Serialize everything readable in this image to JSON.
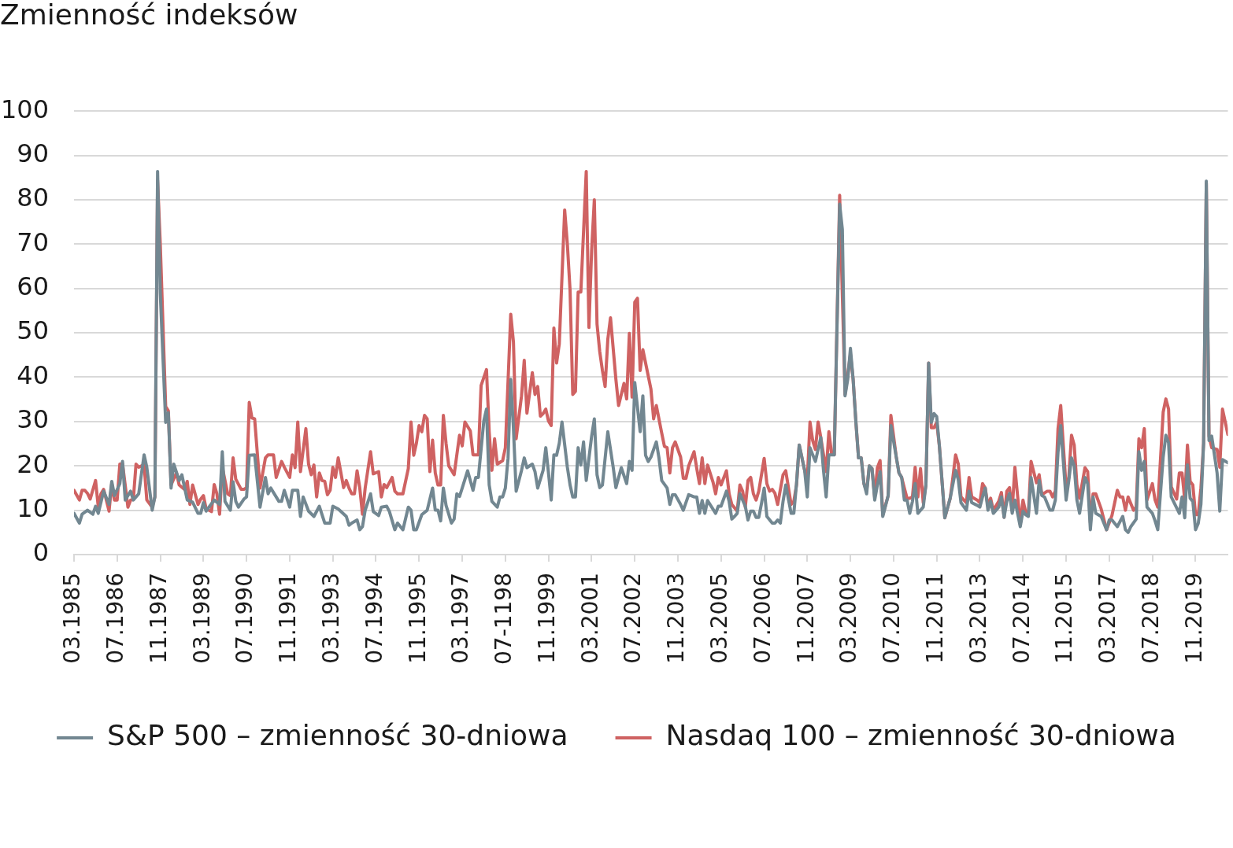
{
  "chart_data": {
    "type": "line",
    "title": "Zmienność indeksów",
    "xlim": [
      "1985-03",
      "2020-11"
    ],
    "xticks": [
      {
        "value": "1985-03",
        "label": "03.1985"
      },
      {
        "value": "1986-07",
        "label": "07.1986"
      },
      {
        "value": "1987-11",
        "label": "11.1987"
      },
      {
        "value": "1989-03",
        "label": "03.1989"
      },
      {
        "value": "1990-07",
        "label": "07.1990"
      },
      {
        "value": "1991-11",
        "label": "11.1991"
      },
      {
        "value": "1993-03",
        "label": "03.1993"
      },
      {
        "value": "1994-07",
        "label": "07.1994"
      },
      {
        "value": "1995-11",
        "label": "11.1995"
      },
      {
        "value": "1997-03",
        "label": "03.1997"
      },
      {
        "value": "1998-07",
        "label": "07-1198"
      },
      {
        "value": "1999-11",
        "label": "11.1999"
      },
      {
        "value": "2001-03",
        "label": "03.2001"
      },
      {
        "value": "2002-07",
        "label": "07.2002"
      },
      {
        "value": "2003-11",
        "label": "11.2003"
      },
      {
        "value": "2005-03",
        "label": "03.2005"
      },
      {
        "value": "2006-07",
        "label": "07.2006"
      },
      {
        "value": "2007-11",
        "label": "11.2007"
      },
      {
        "value": "2009-03",
        "label": "03.2009"
      },
      {
        "value": "2010-07",
        "label": "07.2010"
      },
      {
        "value": "2011-11",
        "label": "11.2011"
      },
      {
        "value": "2013-03",
        "label": "03.2013"
      },
      {
        "value": "2014-07",
        "label": "07.2014"
      },
      {
        "value": "2015-11",
        "label": "11.2015"
      },
      {
        "value": "2017-03",
        "label": "03.2017"
      },
      {
        "value": "2018-07",
        "label": "07.2018"
      },
      {
        "value": "2019-11",
        "label": "11.2019"
      }
    ],
    "ylim": [
      0,
      100
    ],
    "yticks": [
      0,
      10,
      20,
      30,
      40,
      50,
      60,
      70,
      80,
      90,
      100
    ],
    "grid": "y",
    "legend": "bottom",
    "series": [
      {
        "name": "S&P 500 – zmienność 30-dniowa",
        "color": "#728791",
        "x": [
          "1985-03",
          "1985-05",
          "1985-06",
          "1985-08",
          "1985-10",
          "1985-11",
          "1985-12",
          "1986-02",
          "1986-04",
          "1986-05",
          "1986-06",
          "1986-08",
          "1986-09",
          "1986-10",
          "1986-12",
          "1987-01",
          "1987-03",
          "1987-05",
          "1987-06",
          "1987-08",
          "1987-09",
          "1987-10",
          "1987-11",
          "1988-01",
          "1988-02",
          "1988-03",
          "1988-04",
          "1988-06",
          "1988-07",
          "1988-09",
          "1988-11",
          "1989-01",
          "1989-02",
          "1989-03",
          "1989-04",
          "1989-07",
          "1989-09",
          "1989-10",
          "1989-11",
          "1990-01",
          "1990-02",
          "1990-03",
          "1990-04",
          "1990-06",
          "1990-07",
          "1990-08",
          "1990-10",
          "1990-12",
          "1991-02",
          "1991-03",
          "1991-04",
          "1991-07",
          "1991-08",
          "1991-09",
          "1991-11",
          "1991-12",
          "1992-02",
          "1992-03",
          "1992-04",
          "1992-06",
          "1992-08",
          "1992-10",
          "1992-12",
          "1993-02",
          "1993-03",
          "1993-05",
          "1993-08",
          "1993-09",
          "1993-10",
          "1993-12",
          "1994-01",
          "1994-02",
          "1994-03",
          "1994-05",
          "1994-06",
          "1994-08",
          "1994-09",
          "1994-11",
          "1994-12",
          "1995-02",
          "1995-03",
          "1995-05",
          "1995-07",
          "1995-08",
          "1995-09",
          "1995-10",
          "1995-12",
          "1996-02",
          "1996-04",
          "1996-05",
          "1996-06",
          "1996-07",
          "1996-08",
          "1996-09",
          "1996-11",
          "1996-12",
          "1997-01",
          "1997-02",
          "1997-03",
          "1997-05",
          "1997-07",
          "1997-08",
          "1997-09",
          "1997-11",
          "1997-12",
          "1998-01",
          "1998-02",
          "1998-04",
          "1998-05",
          "1998-06",
          "1998-07",
          "1998-08",
          "1998-09",
          "1998-10",
          "1998-11",
          "1999-01",
          "1999-02",
          "1999-03",
          "1999-05",
          "1999-06",
          "1999-07",
          "1999-09",
          "1999-10",
          "1999-11",
          "1999-12",
          "2000-01",
          "2000-02",
          "2000-03",
          "2000-04",
          "2000-06",
          "2000-07",
          "2000-08",
          "2000-09",
          "2000-10",
          "2000-11",
          "2000-12",
          "2001-01",
          "2001-03",
          "2001-04",
          "2001-05",
          "2001-06",
          "2001-07",
          "2001-09",
          "2001-11",
          "2001-12",
          "2002-02",
          "2002-04",
          "2002-05",
          "2002-06",
          "2002-07",
          "2002-09",
          "2002-10",
          "2002-11",
          "2002-12",
          "2003-01",
          "2003-03",
          "2003-04",
          "2003-05",
          "2003-07",
          "2003-08",
          "2003-09",
          "2003-10",
          "2003-12",
          "2004-01",
          "2004-03",
          "2004-05",
          "2004-06",
          "2004-07",
          "2004-08",
          "2004-09",
          "2004-10",
          "2005-01",
          "2005-02",
          "2005-03",
          "2005-05",
          "2005-06",
          "2005-07",
          "2005-08",
          "2005-09",
          "2005-10",
          "2005-12",
          "2006-01",
          "2006-02",
          "2006-03",
          "2006-04",
          "2006-05",
          "2006-06",
          "2006-07",
          "2006-08",
          "2006-10",
          "2006-11",
          "2006-12",
          "2007-01",
          "2007-02",
          "2007-03",
          "2007-05",
          "2007-06",
          "2007-07",
          "2007-08",
          "2007-10",
          "2007-11",
          "2007-12",
          "2008-01",
          "2008-02",
          "2008-04",
          "2008-05",
          "2008-06",
          "2008-07",
          "2008-09",
          "2008-11",
          "2008-12",
          "2009-01",
          "2009-02",
          "2009-03",
          "2009-04",
          "2009-05",
          "2009-06",
          "2009-07",
          "2009-08",
          "2009-09",
          "2009-10",
          "2009-11",
          "2009-12",
          "2010-01",
          "2010-02",
          "2010-03",
          "2010-05",
          "2010-06",
          "2010-08",
          "2010-09",
          "2010-10",
          "2010-11",
          "2010-12",
          "2011-01",
          "2011-02",
          "2011-03",
          "2011-04",
          "2011-06",
          "2011-07",
          "2011-08",
          "2011-09",
          "2011-10",
          "2011-11",
          "2011-12",
          "2012-02",
          "2012-04",
          "2012-06",
          "2012-07",
          "2012-08",
          "2012-10",
          "2012-11",
          "2012-12",
          "2013-02",
          "2013-03",
          "2013-04",
          "2013-05",
          "2013-06",
          "2013-07",
          "2013-08",
          "2013-10",
          "2013-11",
          "2013-12",
          "2014-01",
          "2014-02",
          "2014-03",
          "2014-04",
          "2014-06",
          "2014-07",
          "2014-08",
          "2014-09",
          "2014-10",
          "2014-12",
          "2015-01",
          "2015-02",
          "2015-03",
          "2015-05",
          "2015-06",
          "2015-07",
          "2015-08",
          "2015-09",
          "2015-11",
          "2015-12",
          "2016-01",
          "2016-02",
          "2016-03",
          "2016-04",
          "2016-06",
          "2016-07",
          "2016-08",
          "2016-09",
          "2016-10",
          "2016-12",
          "2017-02",
          "2017-03",
          "2017-04",
          "2017-06",
          "2017-08",
          "2017-09",
          "2017-10",
          "2017-11",
          "2018-01",
          "2018-02",
          "2018-03",
          "2018-04",
          "2018-05",
          "2018-07",
          "2018-08",
          "2018-09",
          "2018-11",
          "2018-12",
          "2019-01",
          "2019-02",
          "2019-05",
          "2019-06",
          "2019-07",
          "2019-08",
          "2019-09",
          "2019-10",
          "2019-11",
          "2019-12",
          "2020-01",
          "2020-02",
          "2020-03",
          "2020-04",
          "2020-05",
          "2020-07",
          "2020-08",
          "2020-09",
          "2020-11"
        ],
        "values": [
          9.3,
          7.1,
          9.1,
          10.0,
          9.1,
          10.9,
          9.3,
          14.3,
          11.3,
          16.5,
          13.3,
          16.0,
          21.0,
          12.3,
          14.3,
          12.3,
          13.7,
          22.5,
          19.7,
          10.0,
          13.0,
          86.4,
          59.0,
          29.8,
          32.0,
          15.0,
          20.4,
          16.7,
          18.0,
          12.3,
          11.8,
          9.3,
          9.3,
          11.7,
          9.8,
          12.3,
          11.3,
          23.2,
          12.0,
          10.0,
          16.4,
          12.0,
          10.7,
          12.5,
          13.0,
          22.4,
          22.5,
          10.7,
          17.4,
          13.7,
          15.0,
          12.0,
          12.0,
          14.5,
          10.7,
          14.5,
          14.5,
          8.6,
          13.0,
          9.8,
          8.6,
          10.9,
          7.1,
          7.1,
          10.9,
          10.3,
          8.6,
          6.6,
          7.1,
          7.8,
          5.6,
          6.3,
          10.0,
          13.7,
          9.7,
          8.8,
          10.7,
          10.9,
          9.7,
          5.6,
          7.1,
          5.6,
          10.7,
          10.0,
          5.6,
          5.6,
          9.0,
          10.0,
          15.0,
          10.0,
          10.0,
          7.6,
          15.0,
          11.1,
          7.1,
          8.0,
          13.7,
          13.1,
          15.0,
          18.9,
          14.5,
          17.4,
          17.4,
          30.1,
          32.8,
          15.7,
          12.0,
          10.7,
          13.0,
          13.0,
          15.0,
          21.7,
          39.5,
          28.4,
          14.3,
          19.0,
          21.8,
          19.6,
          20.4,
          18.7,
          15.0,
          19.0,
          24.1,
          18.4,
          12.3,
          22.5,
          22.4,
          25.1,
          29.9,
          19.7,
          15.7,
          13.0,
          13.0,
          24.1,
          20.2,
          25.4,
          16.7,
          26.7,
          30.6,
          18.0,
          15.1,
          15.7,
          27.7,
          19.7,
          15.1,
          19.6,
          16.0,
          21.0,
          19.0,
          38.8,
          27.7,
          35.8,
          22.4,
          21.0,
          22.0,
          25.4,
          21.7,
          16.7,
          15.0,
          11.3,
          13.5,
          13.5,
          11.3,
          10.0,
          13.5,
          13.0,
          13.0,
          9.3,
          12.2,
          9.3,
          12.2,
          9.3,
          10.9,
          10.9,
          14.3,
          12.0,
          8.0,
          8.6,
          9.3,
          13.7,
          10.9,
          7.8,
          9.8,
          9.8,
          8.4,
          8.4,
          11.5,
          15.0,
          8.6,
          7.1,
          7.1,
          7.8,
          7.1,
          12.0,
          15.7,
          9.3,
          9.3,
          16.0,
          24.7,
          19.0,
          13.0,
          24.1,
          22.5,
          21.0,
          26.4,
          19.0,
          13.0,
          22.5,
          22.5,
          79.0,
          73.3,
          35.8,
          39.5,
          46.5,
          39.5,
          30.1,
          21.8,
          21.8,
          16.0,
          13.7,
          20.0,
          19.4,
          12.3,
          15.7,
          18.7,
          8.6,
          13.3,
          29.1,
          22.0,
          18.4,
          17.4,
          12.3,
          12.3,
          9.3,
          12.0,
          16.0,
          9.3,
          10.7,
          15.7,
          43.2,
          29.8,
          31.8,
          31.1,
          24.4,
          8.3,
          12.7,
          19.0,
          16.9,
          11.7,
          10.0,
          14.3,
          11.7,
          11.1,
          10.7,
          13.0,
          15.0,
          10.0,
          12.0,
          9.3,
          10.7,
          13.0,
          8.4,
          12.0,
          13.8,
          9.3,
          12.3,
          6.3,
          9.8,
          9.0,
          8.6,
          17.4,
          9.3,
          16.7,
          13.3,
          13.0,
          10.0,
          10.0,
          12.3,
          23.1,
          29.1,
          12.3,
          16.7,
          21.8,
          20.0,
          12.3,
          9.3,
          17.4,
          16.0,
          5.6,
          13.0,
          9.3,
          8.6,
          5.6,
          7.8,
          7.8,
          6.3,
          8.6,
          5.6,
          5.0,
          6.3,
          8.0,
          23.2,
          19.0,
          21.0,
          10.7,
          9.3,
          7.6,
          5.6,
          22.0,
          26.9,
          25.2,
          13.0,
          9.3,
          13.0,
          8.3,
          20.2,
          12.7,
          12.0,
          5.6,
          7.0,
          11.3,
          25.1,
          84.2,
          25.7,
          26.7,
          18.4,
          9.8,
          21.4,
          20.7
        ]
      },
      {
        "name": "Nasdaq 100 – zmienność 30-dniowa",
        "color": "#cf6262",
        "x": [
          "1985-03",
          "1985-05",
          "1985-06",
          "1985-07",
          "1985-08",
          "1985-09",
          "1985-11",
          "1985-12",
          "1986-01",
          "1986-02",
          "1986-04",
          "1986-05",
          "1986-06",
          "1986-07",
          "1986-08",
          "1986-09",
          "1986-11",
          "1986-12",
          "1987-01",
          "1987-02",
          "1987-03",
          "1987-05",
          "1987-06",
          "1987-08",
          "1987-09",
          "1987-10",
          "1987-11",
          "1988-01",
          "1988-02",
          "1988-03",
          "1988-05",
          "1988-06",
          "1988-08",
          "1988-09",
          "1988-10",
          "1988-11",
          "1989-01",
          "1989-02",
          "1989-03",
          "1989-04",
          "1989-06",
          "1989-07",
          "1989-08",
          "1989-09",
          "1989-10",
          "1989-12",
          "1990-01",
          "1990-02",
          "1990-03",
          "1990-05",
          "1990-06",
          "1990-07",
          "1990-08",
          "1990-09",
          "1990-10",
          "1990-12",
          "1991-02",
          "1991-03",
          "1991-05",
          "1991-06",
          "1991-08",
          "1991-09",
          "1991-11",
          "1991-12",
          "1992-01",
          "1992-02",
          "1992-03",
          "1992-05",
          "1992-06",
          "1992-07",
          "1992-08",
          "1992-09",
          "1992-10",
          "1992-11",
          "1992-12",
          "1993-01",
          "1993-02",
          "1993-03",
          "1993-04",
          "1993-05",
          "1993-07",
          "1993-08",
          "1993-09",
          "1993-10",
          "1993-11",
          "1993-12",
          "1994-01",
          "1994-02",
          "1994-03",
          "1994-05",
          "1994-06",
          "1994-08",
          "1994-09",
          "1994-10",
          "1994-11",
          "1995-01",
          "1995-02",
          "1995-03",
          "1995-05",
          "1995-07",
          "1995-08",
          "1995-09",
          "1995-10",
          "1995-11",
          "1995-12",
          "1996-01",
          "1996-02",
          "1996-03",
          "1996-04",
          "1996-05",
          "1996-06",
          "1996-07",
          "1996-08",
          "1996-09",
          "1996-10",
          "1996-12",
          "1997-01",
          "1997-02",
          "1997-03",
          "1997-04",
          "1997-06",
          "1997-07",
          "1997-09",
          "1997-10",
          "1997-12",
          "1998-01",
          "1998-02",
          "1998-03",
          "1998-04",
          "1998-06",
          "1998-07",
          "1998-09",
          "1998-10",
          "1998-11",
          "1999-01",
          "1999-02",
          "1999-03",
          "1999-05",
          "1999-06",
          "1999-07",
          "1999-08",
          "1999-09",
          "1999-10",
          "1999-11",
          "1999-12",
          "2000-01",
          "2000-02",
          "2000-03",
          "2000-05",
          "2000-06",
          "2000-07",
          "2000-08",
          "2000-09",
          "2000-10",
          "2000-11",
          "2001-01",
          "2001-02",
          "2001-03",
          "2001-04",
          "2001-05",
          "2001-06",
          "2001-07",
          "2001-08",
          "2001-09",
          "2001-10",
          "2001-12",
          "2002-01",
          "2002-03",
          "2002-04",
          "2002-05",
          "2002-06",
          "2002-07",
          "2002-08",
          "2002-09",
          "2002-10",
          "2003-01",
          "2003-02",
          "2003-03",
          "2003-05",
          "2003-06",
          "2003-07",
          "2003-08",
          "2003-09",
          "2003-10",
          "2003-12",
          "2004-01",
          "2004-02",
          "2004-03",
          "2004-05",
          "2004-06",
          "2004-07",
          "2004-08",
          "2004-09",
          "2004-10",
          "2004-12",
          "2005-01",
          "2005-02",
          "2005-03",
          "2005-05",
          "2005-06",
          "2005-07",
          "2005-09",
          "2005-10",
          "2005-11",
          "2005-12",
          "2006-01",
          "2006-02",
          "2006-03",
          "2006-04",
          "2006-05",
          "2006-07",
          "2006-08",
          "2006-09",
          "2006-10",
          "2006-11",
          "2006-12",
          "2007-02",
          "2007-03",
          "2007-05",
          "2007-06",
          "2007-07",
          "2007-08",
          "2007-10",
          "2007-11",
          "2007-12",
          "2008-01",
          "2008-02",
          "2008-03",
          "2008-04",
          "2008-06",
          "2008-07",
          "2008-08",
          "2008-09",
          "2008-11",
          "2009-01",
          "2009-03",
          "2009-04",
          "2009-05",
          "2009-06",
          "2009-07",
          "2009-08",
          "2009-09",
          "2009-10",
          "2009-11",
          "2009-12",
          "2010-01",
          "2010-02",
          "2010-03",
          "2010-05",
          "2010-06",
          "2010-08",
          "2010-09",
          "2010-10",
          "2010-11",
          "2010-12",
          "2011-01",
          "2011-02",
          "2011-03",
          "2011-04",
          "2011-05",
          "2011-06",
          "2011-07",
          "2011-08",
          "2011-09",
          "2011-10",
          "2011-11",
          "2011-12",
          "2012-02",
          "2012-04",
          "2012-05",
          "2012-06",
          "2012-07",
          "2012-08",
          "2012-10",
          "2012-11",
          "2012-12",
          "2013-02",
          "2013-03",
          "2013-04",
          "2013-05",
          "2013-06",
          "2013-07",
          "2013-08",
          "2013-10",
          "2013-11",
          "2013-12",
          "2014-01",
          "2014-02",
          "2014-03",
          "2014-04",
          "2014-06",
          "2014-07",
          "2014-08",
          "2014-09",
          "2014-10",
          "2014-12",
          "2015-01",
          "2015-02",
          "2015-04",
          "2015-05",
          "2015-06",
          "2015-07",
          "2015-08",
          "2015-09",
          "2015-11",
          "2015-12",
          "2016-01",
          "2016-02",
          "2016-03",
          "2016-04",
          "2016-06",
          "2016-07",
          "2016-08",
          "2016-09",
          "2016-10",
          "2016-12",
          "2017-02",
          "2017-04",
          "2017-06",
          "2017-07",
          "2017-08",
          "2017-09",
          "2017-10",
          "2017-12",
          "2018-01",
          "2018-02",
          "2018-03",
          "2018-04",
          "2018-05",
          "2018-07",
          "2018-08",
          "2018-09",
          "2018-11",
          "2018-12",
          "2019-01",
          "2019-02",
          "2019-04",
          "2019-05",
          "2019-06",
          "2019-07",
          "2019-08",
          "2019-09",
          "2019-10",
          "2019-11",
          "2019-12",
          "2020-01",
          "2020-02",
          "2020-03",
          "2020-04",
          "2020-05",
          "2020-07",
          "2020-08",
          "2020-09",
          "2020-11"
        ],
        "values": [
          14.5,
          12.3,
          14.5,
          14.5,
          13.8,
          12.5,
          16.7,
          10.7,
          13.7,
          14.7,
          9.8,
          16.0,
          12.3,
          12.3,
          20.4,
          20.5,
          10.7,
          12.3,
          12.4,
          20.4,
          19.7,
          20.3,
          12.3,
          10.7,
          13.0,
          84.4,
          70.0,
          33.4,
          32.4,
          15.7,
          18.4,
          15.7,
          14.7,
          16.5,
          11.3,
          15.7,
          11.3,
          12.5,
          13.3,
          10.3,
          9.7,
          15.8,
          13.7,
          9.1,
          19.7,
          13.7,
          13.3,
          21.8,
          17.0,
          14.7,
          14.7,
          15.1,
          34.3,
          30.8,
          30.6,
          15.0,
          21.8,
          22.5,
          22.5,
          17.4,
          21.0,
          19.7,
          17.4,
          22.5,
          19.6,
          29.9,
          18.7,
          28.4,
          20.4,
          18.0,
          20.2,
          13.0,
          18.4,
          16.7,
          16.5,
          13.5,
          14.5,
          19.7,
          17.4,
          21.8,
          15.1,
          16.7,
          15.0,
          13.7,
          13.7,
          18.9,
          15.0,
          9.1,
          15.0,
          23.2,
          18.2,
          18.7,
          13.0,
          15.8,
          15.1,
          17.4,
          14.3,
          13.7,
          13.7,
          19.4,
          29.9,
          22.4,
          25.1,
          29.1,
          27.7,
          31.4,
          30.6,
          18.7,
          25.8,
          18.4,
          15.7,
          15.7,
          31.4,
          25.1,
          20.0,
          18.0,
          22.5,
          26.9,
          24.5,
          29.9,
          27.9,
          22.5,
          22.5,
          38.1,
          41.7,
          27.7,
          19.0,
          26.1,
          20.4,
          21.2,
          24.1,
          54.2,
          47.9,
          26.1,
          35.8,
          43.8,
          31.9,
          41.0,
          36.1,
          37.9,
          31.2,
          31.8,
          32.8,
          30.1,
          29.1,
          51.1,
          43.2,
          47.5,
          77.7,
          70.0,
          59.6,
          36.1,
          36.8,
          59.2,
          59.2,
          86.4,
          51.2,
          68.6,
          80.0,
          52.0,
          45.8,
          41.5,
          37.9,
          48.5,
          53.4,
          39.5,
          33.6,
          38.6,
          35.1,
          49.9,
          35.5,
          56.9,
          57.8,
          41.5,
          46.2,
          37.3,
          30.6,
          33.6,
          27.4,
          24.4,
          24.1,
          18.4,
          24.1,
          25.4,
          22.0,
          17.2,
          17.2,
          20.0,
          23.2,
          19.4,
          16.0,
          21.8,
          16.0,
          20.2,
          16.4,
          13.7,
          17.4,
          15.7,
          18.9,
          13.7,
          11.3,
          9.8,
          15.7,
          14.3,
          10.7,
          16.7,
          17.4,
          13.7,
          12.3,
          14.3,
          21.7,
          16.0,
          14.3,
          14.7,
          13.8,
          11.3,
          18.0,
          18.9,
          11.3,
          12.0,
          15.7,
          24.7,
          19.0,
          17.0,
          29.9,
          25.7,
          23.7,
          29.9,
          26.4,
          18.7,
          27.7,
          22.7,
          22.5,
          81.0,
          36.1,
          45.2,
          39.5,
          30.1,
          21.8,
          21.8,
          16.0,
          14.3,
          20.0,
          19.4,
          12.9,
          19.6,
          21.2,
          8.9,
          13.3,
          31.4,
          22.0,
          18.4,
          17.4,
          15.0,
          12.7,
          12.7,
          13.0,
          19.7,
          13.0,
          19.4,
          11.7,
          15.7,
          43.2,
          28.6,
          28.6,
          29.8,
          24.4,
          8.3,
          12.7,
          17.4,
          22.5,
          20.4,
          13.0,
          11.7,
          17.4,
          13.0,
          12.3,
          11.7,
          16.0,
          15.0,
          11.0,
          12.7,
          10.0,
          12.0,
          14.0,
          8.4,
          14.3,
          15.1,
          10.0,
          19.7,
          6.8,
          12.3,
          9.6,
          9.3,
          21.0,
          16.2,
          18.0,
          13.5,
          14.3,
          14.3,
          13.0,
          14.3,
          28.4,
          33.6,
          15.0,
          17.4,
          26.9,
          24.7,
          15.7,
          12.7,
          19.6,
          18.7,
          7.1,
          13.7,
          13.7,
          10.3,
          5.6,
          8.8,
          14.5,
          13.0,
          13.0,
          10.0,
          13.0,
          10.0,
          10.7,
          26.1,
          24.1,
          28.4,
          12.3,
          16.0,
          12.3,
          10.7,
          32.1,
          35.1,
          32.8,
          15.3,
          12.5,
          18.4,
          18.4,
          12.3,
          24.7,
          16.5,
          15.7,
          9.0,
          9.0,
          15.0,
          25.1,
          83.7,
          26.7,
          24.1,
          23.7,
          19.7,
          32.8,
          27.1
        ]
      }
    ]
  }
}
